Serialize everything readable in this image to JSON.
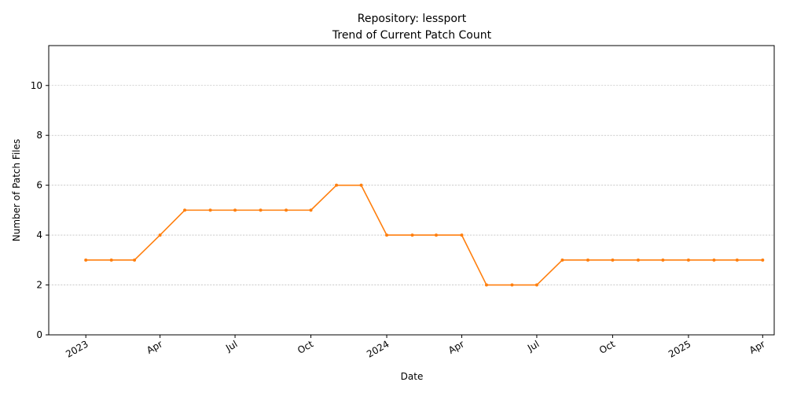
{
  "chart_data": {
    "type": "line",
    "title": "Repository: lessport",
    "subtitle": "Trend of Current Patch Count",
    "xlabel": "Date",
    "ylabel": "Number of Patch Files",
    "ylim": [
      0,
      11.6
    ],
    "xlim": [
      "2022-11-17",
      "2025-04-15"
    ],
    "grid": "horizontal dashed",
    "x_ticks": [
      {
        "date": "2023-01-01",
        "label": "2023"
      },
      {
        "date": "2023-04-01",
        "label": "Apr"
      },
      {
        "date": "2023-07-01",
        "label": "Jul"
      },
      {
        "date": "2023-10-01",
        "label": "Oct"
      },
      {
        "date": "2024-01-01",
        "label": "2024"
      },
      {
        "date": "2024-04-01",
        "label": "Apr"
      },
      {
        "date": "2024-07-01",
        "label": "Jul"
      },
      {
        "date": "2024-10-01",
        "label": "Oct"
      },
      {
        "date": "2025-01-01",
        "label": "2025"
      },
      {
        "date": "2025-04-01",
        "label": "Apr"
      }
    ],
    "y_ticks": [
      0,
      2,
      4,
      6,
      8,
      10
    ],
    "series": [
      {
        "color": "#ff7f0e",
        "points": [
          {
            "x": "2023-01-01",
            "y": 3
          },
          {
            "x": "2023-02-01",
            "y": 3
          },
          {
            "x": "2023-03-01",
            "y": 3
          },
          {
            "x": "2023-04-01",
            "y": 4
          },
          {
            "x": "2023-05-01",
            "y": 5
          },
          {
            "x": "2023-06-01",
            "y": 5
          },
          {
            "x": "2023-07-01",
            "y": 5
          },
          {
            "x": "2023-08-01",
            "y": 5
          },
          {
            "x": "2023-09-01",
            "y": 5
          },
          {
            "x": "2023-10-01",
            "y": 5
          },
          {
            "x": "2023-11-01",
            "y": 6
          },
          {
            "x": "2023-12-01",
            "y": 6
          },
          {
            "x": "2024-01-01",
            "y": 4
          },
          {
            "x": "2024-02-01",
            "y": 4
          },
          {
            "x": "2024-03-01",
            "y": 4
          },
          {
            "x": "2024-04-01",
            "y": 4
          },
          {
            "x": "2024-05-01",
            "y": 2
          },
          {
            "x": "2024-06-01",
            "y": 2
          },
          {
            "x": "2024-07-01",
            "y": 2
          },
          {
            "x": "2024-08-01",
            "y": 3
          },
          {
            "x": "2024-09-01",
            "y": 3
          },
          {
            "x": "2024-10-01",
            "y": 3
          },
          {
            "x": "2024-11-01",
            "y": 3
          },
          {
            "x": "2024-12-01",
            "y": 3
          },
          {
            "x": "2025-01-01",
            "y": 3
          },
          {
            "x": "2025-02-01",
            "y": 3
          },
          {
            "x": "2025-03-01",
            "y": 3
          },
          {
            "x": "2025-04-01",
            "y": 3
          }
        ]
      }
    ]
  }
}
